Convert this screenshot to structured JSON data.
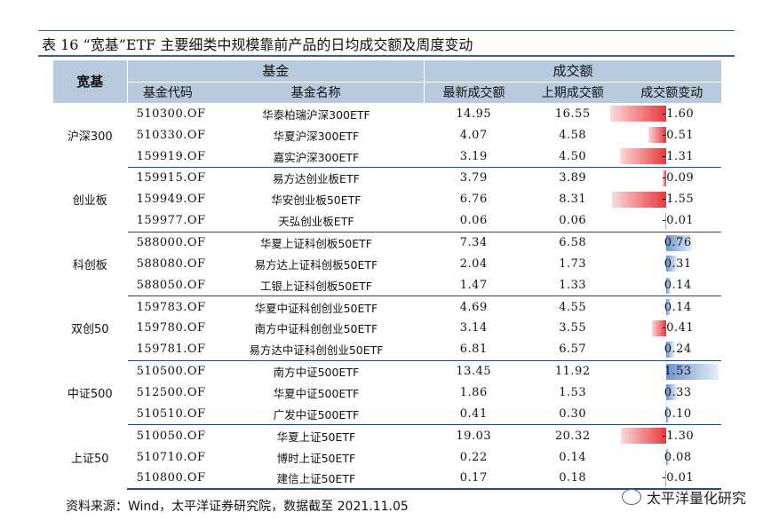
{
  "title": "表 16 “宽基”ETF 主要细类中规模靠前产品的日均成交额及周度变动",
  "header": {
    "broad": "宽基",
    "fund_group": "基金",
    "volume_group": "成交额",
    "code": "基金代码",
    "name": "基金名称",
    "latest": "最新成交额",
    "previous": "上期成交额",
    "change": "成交额变动"
  },
  "groups": [
    {
      "category": "沪深300",
      "rows": [
        {
          "code": "510300.OF",
          "name": "华泰柏瑞沪深300ETF",
          "latest": "14.95",
          "previous": "16.55",
          "change": "-1.60",
          "value": -1.6
        },
        {
          "code": "510330.OF",
          "name": "华夏沪深300ETF",
          "latest": "4.07",
          "previous": "4.58",
          "change": "-0.51",
          "value": -0.51
        },
        {
          "code": "159919.OF",
          "name": "嘉实沪深300ETF",
          "latest": "3.19",
          "previous": "4.50",
          "change": "-1.31",
          "value": -1.31
        }
      ]
    },
    {
      "category": "创业板",
      "rows": [
        {
          "code": "159915.OF",
          "name": "易方达创业板ETF",
          "latest": "3.79",
          "previous": "3.89",
          "change": "-0.09",
          "value": -0.09
        },
        {
          "code": "159949.OF",
          "name": "华安创业板50ETF",
          "latest": "6.76",
          "previous": "8.31",
          "change": "-1.55",
          "value": -1.55
        },
        {
          "code": "159977.OF",
          "name": "天弘创业板ETF",
          "latest": "0.06",
          "previous": "0.06",
          "change": "-0.01",
          "value": -0.01
        }
      ]
    },
    {
      "category": "科创板",
      "rows": [
        {
          "code": "588000.OF",
          "name": "华夏上证科创板50ETF",
          "latest": "7.34",
          "previous": "6.58",
          "change": "0.76",
          "value": 0.76
        },
        {
          "code": "588080.OF",
          "name": "易方达上证科创板50ETF",
          "latest": "2.04",
          "previous": "1.73",
          "change": "0.31",
          "value": 0.31
        },
        {
          "code": "588050.OF",
          "name": "工银上证科创板50ETF",
          "latest": "1.47",
          "previous": "1.33",
          "change": "0.14",
          "value": 0.14
        }
      ]
    },
    {
      "category": "双创50",
      "rows": [
        {
          "code": "159783.OF",
          "name": "华夏中证科创创业50ETF",
          "latest": "4.69",
          "previous": "4.55",
          "change": "0.14",
          "value": 0.14
        },
        {
          "code": "159780.OF",
          "name": "南方中证科创创业50ETF",
          "latest": "3.14",
          "previous": "3.55",
          "change": "-0.41",
          "value": -0.41
        },
        {
          "code": "159781.OF",
          "name": "易方达中证科创创业50ETF",
          "latest": "6.81",
          "previous": "6.57",
          "change": "0.24",
          "value": 0.24
        }
      ]
    },
    {
      "category": "中证500",
      "rows": [
        {
          "code": "510500.OF",
          "name": "南方中证500ETF",
          "latest": "13.45",
          "previous": "11.92",
          "change": "1.53",
          "value": 1.53
        },
        {
          "code": "512500.OF",
          "name": "华夏中证500ETF",
          "latest": "1.86",
          "previous": "1.53",
          "change": "0.33",
          "value": 0.33
        },
        {
          "code": "510510.OF",
          "name": "广发中证500ETF",
          "latest": "0.41",
          "previous": "0.30",
          "change": "0.10",
          "value": 0.1
        }
      ]
    },
    {
      "category": "上证50",
      "rows": [
        {
          "code": "510050.OF",
          "name": "华夏上证50ETF",
          "latest": "19.03",
          "previous": "20.32",
          "change": "-1.30",
          "value": -1.3
        },
        {
          "code": "510710.OF",
          "name": "博时上证50ETF",
          "latest": "0.22",
          "previous": "0.14",
          "change": "0.08",
          "value": 0.08
        },
        {
          "code": "510800.OF",
          "name": "建信上证50ETF",
          "latest": "0.17",
          "previous": "0.18",
          "change": "-0.01",
          "value": -0.01
        }
      ]
    }
  ],
  "source": "资料来源：Wind，太平洋证券研究院，数据截至 2021.11.05",
  "watermark": "太平洋量化研究",
  "bar_colors": {
    "negative": "#e8373a",
    "positive": "#6d93cf"
  }
}
